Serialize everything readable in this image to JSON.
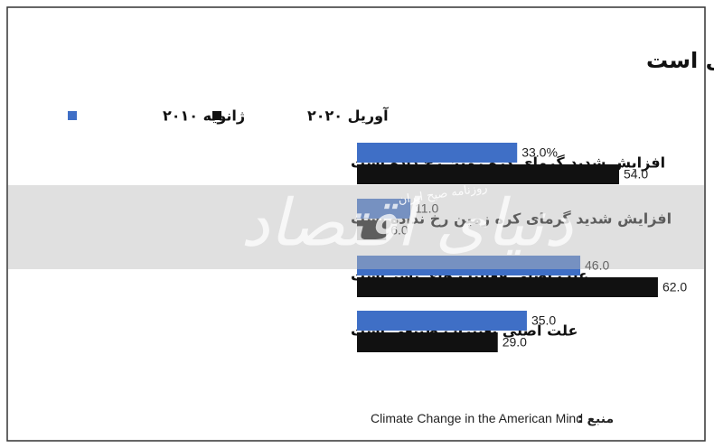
{
  "chart_data": {
    "type": "bar",
    "orientation": "horizontal",
    "title": "اکثر آمریکایی ها عقیده دارند تغییرات اقلیمی واقعی است",
    "categories": [
      "افزایش شدید گرمای کره زمین رخ داده است",
      "افزایش شدید گرمای کره زمین رخ نداده است",
      "علت اصلی فعالیت های بشر است",
      "علت اصلی تغییرات طبیعی است"
    ],
    "series": [
      {
        "name": "ژانویه ۲۰۱۰",
        "color": "#3f6fc6",
        "values": [
          33,
          11,
          46,
          35
        ],
        "value_labels": [
          "33.0%",
          "11.0",
          "46.0",
          "35.0"
        ]
      },
      {
        "name": "آوریل ۲۰۲۰",
        "color": "#111111",
        "values": [
          54,
          6,
          62,
          29
        ],
        "value_labels": [
          "54.0",
          "6.0",
          "62.0",
          "29.0"
        ]
      }
    ],
    "source_label": "منبع :",
    "source": "Climate Change in the American Mind",
    "watermark": "دنیای اقتصاد",
    "watermark_sub": "روزنامه صبح ایران"
  }
}
